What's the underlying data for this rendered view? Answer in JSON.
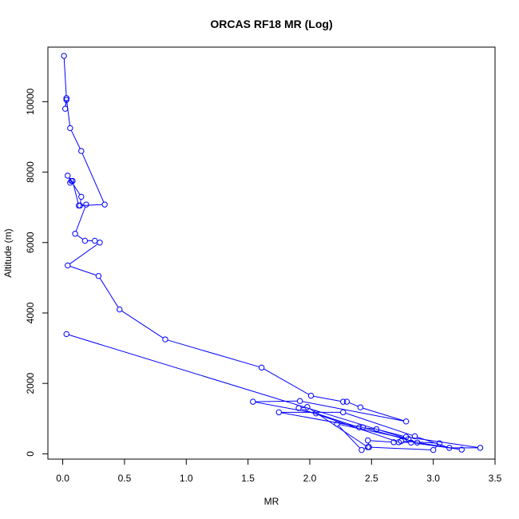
{
  "chart_data": {
    "type": "line",
    "title": "ORCAS RF18 MR (Log)",
    "xlabel": "MR",
    "ylabel": "Altitude (m)",
    "xlim": [
      -0.12,
      3.5
    ],
    "ylim": [
      -150,
      11550
    ],
    "x_ticks": [
      0.0,
      0.5,
      1.0,
      1.5,
      2.0,
      2.5,
      3.0,
      3.5
    ],
    "x_tick_labels": [
      "0.0",
      "0.5",
      "1.0",
      "1.5",
      "2.0",
      "2.5",
      "3.0",
      "3.5"
    ],
    "y_ticks": [
      0,
      2000,
      4000,
      6000,
      8000,
      10000
    ],
    "y_tick_labels": [
      "0",
      "2000",
      "4000",
      "6000",
      "8000",
      "10000"
    ],
    "grid": false,
    "colors": {
      "series": "#0000ff",
      "axis": "#000000",
      "background": "#ffffff"
    },
    "series": [
      {
        "marker": "open-circle",
        "x": [
          0.01,
          0.03,
          0.03,
          0.02,
          0.03,
          0.06,
          0.15,
          0.34,
          0.14,
          0.15,
          0.04,
          0.07,
          0.06,
          0.08,
          0.13,
          0.19,
          0.1,
          0.18,
          0.26,
          0.3,
          0.04,
          0.29,
          0.46,
          0.83,
          1.61,
          2.01,
          2.27,
          2.3,
          2.41,
          2.78,
          1.92,
          1.54,
          2.05,
          2.4,
          2.54,
          2.78,
          3.38,
          3.13,
          2.85,
          2.27,
          1.75,
          2.43,
          2.87,
          3.23,
          2.82,
          2.72,
          1.91,
          1.98,
          2.47,
          3.0,
          3.05,
          2.74,
          2.68,
          2.47,
          2.48,
          2.42,
          2.22,
          2.8,
          0.03
        ],
        "y": [
          11300,
          10100,
          10050,
          9800,
          10100,
          9250,
          8600,
          7080,
          7050,
          7300,
          7900,
          7750,
          7700,
          7750,
          7050,
          7080,
          6250,
          6050,
          6050,
          6000,
          5350,
          5050,
          4100,
          3250,
          2450,
          1650,
          1480,
          1480,
          1320,
          920,
          1500,
          1480,
          1150,
          750,
          700,
          480,
          170,
          170,
          500,
          1180,
          1180,
          750,
          320,
          120,
          320,
          330,
          1300,
          1330,
          190,
          110,
          300,
          360,
          330,
          380,
          190,
          110,
          850,
          420,
          3400
        ]
      }
    ]
  }
}
